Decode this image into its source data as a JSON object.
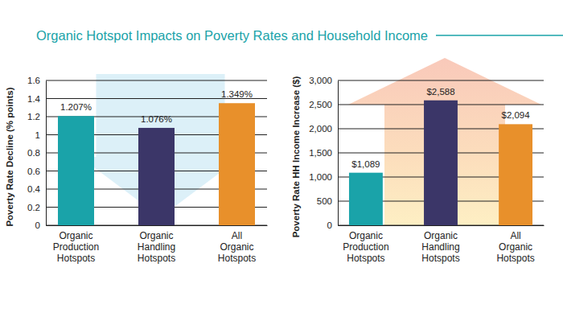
{
  "title": "Organic Hotspot Impacts on Poverty Rates and Household Income",
  "chart_data": [
    {
      "type": "bar",
      "categories": [
        "Organic Production Hotspots",
        "Organic Handling Hotspots",
        "All Organic Hotspots"
      ],
      "values": [
        1.207,
        1.076,
        1.349
      ],
      "value_labels": [
        "1.207%",
        "1.076%",
        "1.349%"
      ],
      "colors": [
        "#1aa3a9",
        "#3b3668",
        "#e8902b"
      ],
      "y_label": "Poverty Rate Decline (% points)",
      "ylim": [
        0,
        1.6
      ],
      "yticks": [
        0,
        0.2,
        0.4,
        0.6,
        0.8,
        1,
        1.2,
        1.4,
        1.6
      ],
      "grid": true,
      "data_labels": true
    },
    {
      "type": "bar",
      "categories": [
        "Organic Production Hotspots",
        "Organic Handling Hotspots",
        "All Organic Hotspots"
      ],
      "values": [
        1089,
        2588,
        2094
      ],
      "value_labels": [
        "$1,089",
        "$2,588",
        "$2,094"
      ],
      "colors": [
        "#1aa3a9",
        "#3b3668",
        "#e8902b"
      ],
      "y_label": "Poverty Rate HH Income Increase ($)",
      "ylim": [
        0,
        3000
      ],
      "yticks": [
        0,
        500,
        {
          "value": 1000,
          "label": "1,000"
        },
        {
          "value": 1500,
          "label": "1,500"
        },
        {
          "value": 2000,
          "label": "2,000"
        },
        {
          "value": 2500,
          "label": "2,500"
        },
        {
          "value": 3000,
          "label": "3,000"
        }
      ],
      "grid": true,
      "data_labels": true
    }
  ]
}
